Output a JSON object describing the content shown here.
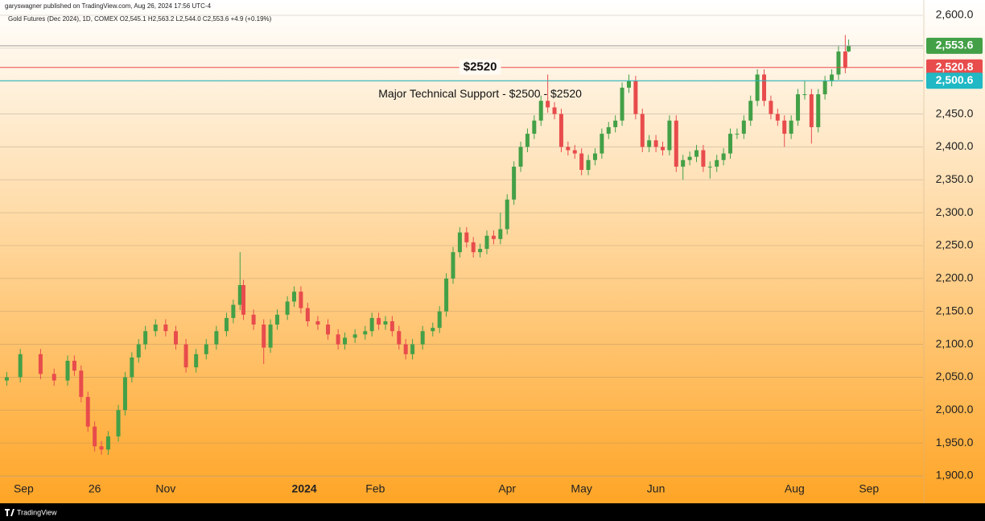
{
  "header": {
    "publisher": "garyswagner published on TradingView.com, Aug 26, 2024 17:56 UTC-4",
    "symbol": "Gold Futures (Dec 2024), 1D, COMEX  O2,545.1  H2,563.2  L2,544.0  C2,553.6  +4.9 (+0.19%)"
  },
  "footer": "TradingView",
  "chart_data": {
    "type": "candlestick",
    "up_color": "#43a047",
    "down_color": "#e84c4c",
    "grid": true,
    "xlim": [
      -2,
      271
    ],
    "ylim": [
      1900,
      2600
    ],
    "xticks": [
      {
        "value": 5,
        "label": "Sep"
      },
      26,
      {
        "value": 47,
        "label": "Nov"
      },
      {
        "value": 88,
        "label": "2024",
        "bold": true
      },
      {
        "value": 109,
        "label": "Feb"
      },
      {
        "value": 148,
        "label": "Apr"
      },
      {
        "value": 170,
        "label": "May"
      },
      {
        "value": 192,
        "label": "Jun"
      },
      {
        "value": 233,
        "label": "Aug"
      },
      {
        "value": 255,
        "label": "Sep"
      }
    ],
    "yticks": [
      {
        "value": 1900,
        "label": "1,900.0"
      },
      {
        "value": 1950,
        "label": "1,950.0"
      },
      {
        "value": 2000,
        "label": "2,000.0"
      },
      {
        "value": 2050,
        "label": "2,050.0"
      },
      {
        "value": 2100,
        "label": "2,100.0"
      },
      {
        "value": 2150,
        "label": "2,150.0"
      },
      {
        "value": 2200,
        "label": "2,200.0"
      },
      {
        "value": 2250,
        "label": "2,250.0"
      },
      {
        "value": 2300,
        "label": "2,300.0"
      },
      {
        "value": 2350,
        "label": "2,350.0"
      },
      {
        "value": 2400,
        "label": "2,400.0"
      },
      {
        "value": 2450,
        "label": "2,450.0"
      },
      {
        "value": 2500,
        "label": "2,500.0"
      },
      {
        "value": 2550,
        "label": "2,550.0"
      },
      {
        "value": 2600,
        "label": "2,600.0"
      }
    ],
    "hlines": [
      {
        "value": 2553.6,
        "label": "2,553.6",
        "color": "#43a047",
        "line_color": "#9e9e9e"
      },
      {
        "value": 2520.8,
        "label": "2,520.8",
        "color": "#e84c4c",
        "line_color": "#e84c4c"
      },
      {
        "value": 2500.6,
        "label": "2,500.6",
        "color": "#1fb8c4",
        "line_color": "#1fb8c4"
      }
    ],
    "annotations": [
      {
        "text": "$2520",
        "y": 2520.8,
        "x": 140
      },
      {
        "text": "Major Technical Support - $2500 - $2520",
        "y": 2480,
        "x": 140
      }
    ],
    "x": [
      0,
      4,
      10,
      14,
      18,
      20,
      22,
      24,
      26,
      28,
      30,
      33,
      35,
      37,
      39,
      41,
      44,
      47,
      50,
      53,
      56,
      59,
      62,
      65,
      67,
      69,
      70,
      73,
      76,
      78,
      80,
      83,
      85,
      87,
      89,
      92,
      95,
      98,
      100,
      103,
      106,
      108,
      110,
      112,
      114,
      116,
      118,
      120,
      123,
      126,
      128,
      130,
      132,
      134,
      136,
      138,
      140,
      142,
      144,
      146,
      148,
      150,
      152,
      154,
      156,
      158,
      160,
      162,
      164,
      166,
      168,
      170,
      172,
      174,
      176,
      178,
      180,
      182,
      184,
      186,
      188,
      190,
      192,
      194,
      196,
      198,
      200,
      202,
      204,
      206,
      208,
      210,
      212,
      214,
      216,
      218,
      220,
      222,
      224,
      226,
      228,
      230,
      232,
      234,
      236,
      238,
      240,
      242,
      244,
      246,
      248,
      249
    ],
    "open": [
      2045,
      2050,
      2085,
      2055,
      2045,
      2075,
      2060,
      2020,
      1975,
      1945,
      1940,
      1960,
      2000,
      2050,
      2080,
      2100,
      2120,
      2130,
      2120,
      2100,
      2065,
      2085,
      2100,
      2120,
      2140,
      2160,
      2190,
      2145,
      2130,
      2095,
      2130,
      2145,
      2165,
      2180,
      2155,
      2135,
      2130,
      2115,
      2100,
      2110,
      2115,
      2120,
      2140,
      2130,
      2135,
      2120,
      2100,
      2085,
      2100,
      2120,
      2125,
      2150,
      2200,
      2240,
      2270,
      2255,
      2240,
      2245,
      2265,
      2260,
      2275,
      2320,
      2370,
      2400,
      2420,
      2440,
      2470,
      2460,
      2450,
      2400,
      2395,
      2390,
      2365,
      2380,
      2390,
      2420,
      2430,
      2440,
      2490,
      2500,
      2450,
      2400,
      2410,
      2400,
      2395,
      2440,
      2370,
      2380,
      2385,
      2395,
      2370,
      2370,
      2380,
      2390,
      2420,
      2420,
      2440,
      2470,
      2510,
      2470,
      2450,
      2440,
      2420,
      2440,
      2480,
      2480,
      2430,
      2480,
      2500,
      2510,
      2545,
      2545.1
    ],
    "high": [
      2058,
      2093,
      2093,
      2063,
      2083,
      2083,
      2068,
      2028,
      1983,
      1953,
      1968,
      2008,
      2058,
      2088,
      2108,
      2128,
      2138,
      2138,
      2128,
      2108,
      2093,
      2108,
      2128,
      2148,
      2168,
      2240,
      2198,
      2153,
      2138,
      2138,
      2153,
      2173,
      2188,
      2188,
      2163,
      2143,
      2138,
      2123,
      2118,
      2123,
      2128,
      2148,
      2148,
      2143,
      2143,
      2128,
      2108,
      2108,
      2128,
      2133,
      2158,
      2208,
      2248,
      2278,
      2278,
      2263,
      2253,
      2273,
      2273,
      2300,
      2328,
      2378,
      2408,
      2428,
      2448,
      2478,
      2510,
      2468,
      2458,
      2408,
      2403,
      2398,
      2388,
      2398,
      2428,
      2438,
      2448,
      2498,
      2510,
      2508,
      2458,
      2418,
      2418,
      2408,
      2448,
      2448,
      2388,
      2393,
      2403,
      2403,
      2378,
      2388,
      2398,
      2428,
      2428,
      2448,
      2478,
      2518,
      2518,
      2478,
      2458,
      2448,
      2448,
      2488,
      2500,
      2488,
      2488,
      2508,
      2518,
      2553,
      2570,
      2563.2
    ],
    "low": [
      2037,
      2042,
      2047,
      2037,
      2037,
      2052,
      2012,
      1967,
      1937,
      1932,
      1932,
      1952,
      1992,
      2042,
      2072,
      2092,
      2112,
      2112,
      2092,
      2057,
      2057,
      2077,
      2092,
      2112,
      2132,
      2152,
      2137,
      2122,
      2070,
      2087,
      2122,
      2137,
      2157,
      2147,
      2127,
      2122,
      2107,
      2092,
      2092,
      2102,
      2107,
      2112,
      2122,
      2122,
      2112,
      2092,
      2077,
      2077,
      2092,
      2112,
      2117,
      2142,
      2192,
      2232,
      2247,
      2232,
      2232,
      2237,
      2252,
      2252,
      2267,
      2312,
      2362,
      2392,
      2412,
      2432,
      2452,
      2442,
      2392,
      2387,
      2382,
      2357,
      2357,
      2372,
      2382,
      2412,
      2422,
      2432,
      2482,
      2442,
      2392,
      2392,
      2392,
      2387,
      2387,
      2362,
      2350,
      2372,
      2377,
      2362,
      2352,
      2362,
      2372,
      2382,
      2412,
      2412,
      2432,
      2462,
      2462,
      2442,
      2432,
      2400,
      2412,
      2432,
      2472,
      2405,
      2422,
      2472,
      2492,
      2502,
      2512,
      2544.0
    ],
    "close": [
      2050,
      2085,
      2055,
      2045,
      2075,
      2060,
      2020,
      1975,
      1945,
      1940,
      1960,
      2000,
      2050,
      2080,
      2100,
      2120,
      2130,
      2120,
      2100,
      2065,
      2085,
      2100,
      2120,
      2140,
      2160,
      2190,
      2145,
      2130,
      2095,
      2130,
      2145,
      2165,
      2180,
      2155,
      2135,
      2130,
      2115,
      2100,
      2110,
      2115,
      2120,
      2140,
      2130,
      2135,
      2120,
      2100,
      2085,
      2100,
      2120,
      2125,
      2150,
      2200,
      2240,
      2270,
      2255,
      2240,
      2245,
      2265,
      2260,
      2275,
      2320,
      2370,
      2400,
      2420,
      2440,
      2470,
      2460,
      2450,
      2400,
      2395,
      2390,
      2365,
      2380,
      2390,
      2420,
      2430,
      2440,
      2490,
      2500,
      2450,
      2400,
      2410,
      2400,
      2395,
      2440,
      2370,
      2380,
      2385,
      2395,
      2370,
      2370,
      2380,
      2390,
      2420,
      2420,
      2440,
      2470,
      2510,
      2470,
      2450,
      2440,
      2420,
      2440,
      2480,
      2480,
      2430,
      2480,
      2500,
      2510,
      2545,
      2520,
      2553.6
    ]
  }
}
